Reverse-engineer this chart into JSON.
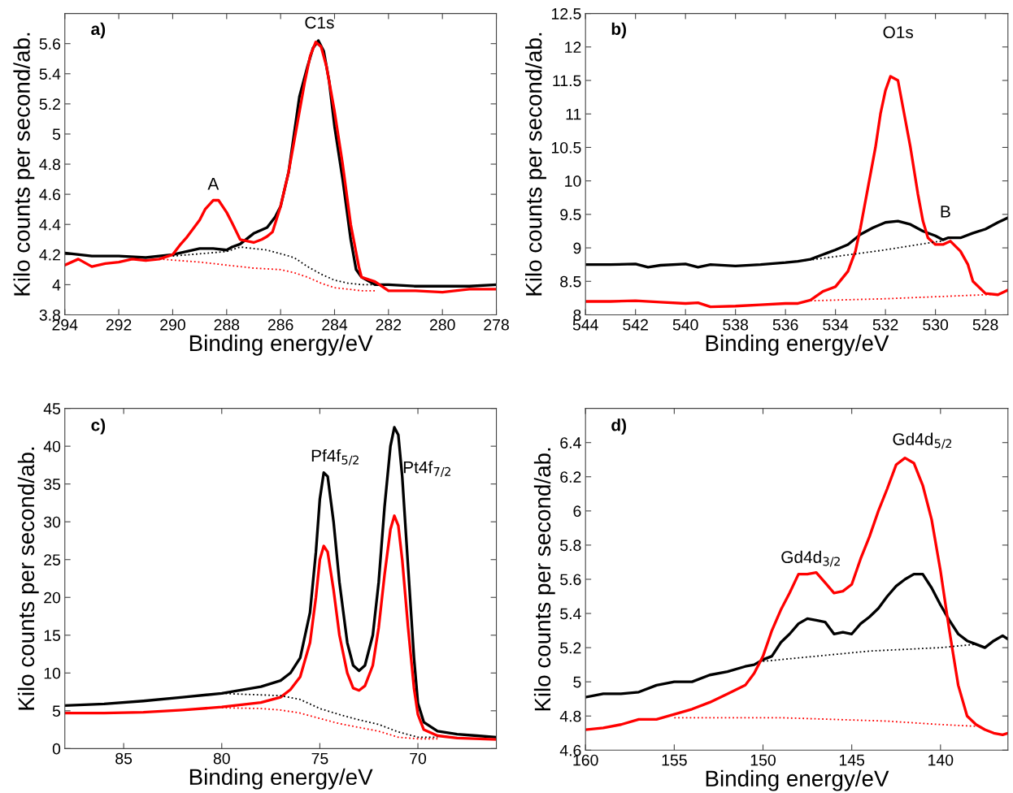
{
  "chart_data": [
    {
      "type": "line",
      "title": "a)",
      "xlabel": "Binding energy/eV",
      "ylabel": "Kilo counts per second/ab.",
      "xlim": [
        294,
        278
      ],
      "ylim": [
        3.8,
        5.8
      ],
      "xticks": [
        294,
        292,
        290,
        288,
        286,
        284,
        282,
        280,
        278
      ],
      "yticks": [
        3.8,
        4,
        4.2,
        4.4,
        4.6,
        4.8,
        5,
        5.2,
        5.4,
        5.6
      ],
      "annotations": [
        "C1s",
        "A"
      ],
      "series": [
        {
          "color": "#000000",
          "line_style": "solid",
          "x": [
            294,
            293,
            292,
            291,
            290.5,
            290,
            289.5,
            289,
            288.5,
            288,
            287.8,
            287.5,
            287,
            286.5,
            286.2,
            286,
            285.7,
            285.5,
            285.3,
            285,
            284.8,
            284.6,
            284.4,
            284.2,
            284,
            283.7,
            283.4,
            283.2,
            283,
            282.5,
            282,
            281,
            280,
            279,
            278
          ],
          "values": [
            4.21,
            4.19,
            4.19,
            4.18,
            4.19,
            4.2,
            4.22,
            4.24,
            4.24,
            4.23,
            4.25,
            4.27,
            4.34,
            4.38,
            4.45,
            4.52,
            4.75,
            5.0,
            5.25,
            5.45,
            5.57,
            5.62,
            5.55,
            5.35,
            5.05,
            4.7,
            4.3,
            4.1,
            4.05,
            4.0,
            4.0,
            3.99,
            3.99,
            3.99,
            4.0
          ]
        },
        {
          "color": "#ff0000",
          "line_style": "solid",
          "x": [
            294,
            293.5,
            293,
            292.5,
            292,
            291.5,
            291,
            290.5,
            290,
            289.7,
            289.5,
            289,
            288.8,
            288.5,
            288.3,
            288,
            287.8,
            287.5,
            287,
            286.7,
            286.5,
            286.3,
            286,
            285.7,
            285.4,
            285.1,
            284.9,
            284.7,
            284.5,
            284.3,
            284,
            283.7,
            283.4,
            283.1,
            283,
            282.5,
            282,
            281,
            280,
            279,
            278
          ],
          "values": [
            4.13,
            4.17,
            4.12,
            4.14,
            4.15,
            4.17,
            4.16,
            4.17,
            4.2,
            4.27,
            4.31,
            4.43,
            4.5,
            4.56,
            4.56,
            4.48,
            4.41,
            4.3,
            4.28,
            4.3,
            4.32,
            4.35,
            4.52,
            4.75,
            5.05,
            5.35,
            5.52,
            5.61,
            5.58,
            5.45,
            5.15,
            4.8,
            4.4,
            4.12,
            4.05,
            4.02,
            3.96,
            3.96,
            3.95,
            3.97,
            3.97
          ]
        },
        {
          "color": "#000000",
          "line_style": "dotted",
          "x": [
            290,
            288,
            287.5,
            286.5,
            285.5,
            285,
            284.5,
            284,
            283.5,
            283,
            282.5
          ],
          "values": [
            4.19,
            4.22,
            4.25,
            4.23,
            4.18,
            4.12,
            4.07,
            4.03,
            4.01,
            4.0,
            4.0
          ]
        },
        {
          "color": "#ff0000",
          "line_style": "dotted",
          "x": [
            290.5,
            289,
            288,
            287,
            286,
            285.5,
            285,
            284.5,
            284,
            283.5,
            283,
            282.5
          ],
          "values": [
            4.17,
            4.15,
            4.13,
            4.11,
            4.1,
            4.08,
            4.05,
            4.01,
            3.98,
            3.97,
            3.96,
            3.96
          ]
        }
      ]
    },
    {
      "type": "line",
      "title": "b)",
      "xlabel": "Binding energy/eV",
      "ylabel": "Kilo counts per second/ab.",
      "xlim": [
        544,
        527.1
      ],
      "ylim": [
        8,
        12.5
      ],
      "xticks": [
        544,
        542,
        540,
        538,
        536,
        534,
        532,
        530,
        528
      ],
      "yticks": [
        8,
        8.5,
        9,
        9.5,
        10,
        10.5,
        11,
        11.5,
        12,
        12.5
      ],
      "annotations": [
        "O1s",
        "B"
      ],
      "series": [
        {
          "color": "#000000",
          "line_style": "solid",
          "x": [
            544,
            543,
            542,
            541.5,
            541,
            540,
            539.5,
            539,
            538,
            537,
            536,
            535.5,
            535,
            534.5,
            534,
            533.5,
            533,
            532.5,
            532,
            531.5,
            531,
            530.5,
            530,
            529.7,
            529.5,
            529,
            528.5,
            528,
            527.5,
            527.1
          ],
          "values": [
            8.75,
            8.75,
            8.76,
            8.71,
            8.74,
            8.76,
            8.71,
            8.75,
            8.73,
            8.75,
            8.78,
            8.8,
            8.83,
            8.9,
            8.97,
            9.05,
            9.2,
            9.3,
            9.38,
            9.4,
            9.35,
            9.25,
            9.18,
            9.12,
            9.15,
            9.15,
            9.22,
            9.28,
            9.38,
            9.45
          ]
        },
        {
          "color": "#ff0000",
          "line_style": "solid",
          "x": [
            544,
            543,
            542,
            541,
            540,
            539.5,
            539,
            538,
            537,
            536,
            535.5,
            535,
            534.5,
            534,
            533.5,
            533.2,
            533,
            532.7,
            532.4,
            532.2,
            532,
            531.8,
            531.5,
            531.3,
            531,
            530.7,
            530.5,
            530.3,
            530,
            529.7,
            529.4,
            529,
            528.7,
            528.5,
            528,
            527.5,
            527.1
          ],
          "values": [
            8.2,
            8.2,
            8.21,
            8.19,
            8.17,
            8.18,
            8.12,
            8.13,
            8.15,
            8.17,
            8.17,
            8.22,
            8.35,
            8.42,
            8.65,
            8.95,
            9.3,
            9.9,
            10.5,
            11.0,
            11.35,
            11.56,
            11.5,
            11.1,
            10.5,
            9.8,
            9.4,
            9.15,
            9.05,
            9.05,
            9.1,
            8.95,
            8.75,
            8.5,
            8.32,
            8.3,
            8.37
          ]
        },
        {
          "color": "#000000",
          "line_style": "dotted",
          "x": [
            536,
            535,
            534,
            533,
            532,
            531,
            530,
            529.7
          ],
          "values": [
            8.78,
            8.82,
            8.87,
            8.92,
            8.97,
            9.03,
            9.09,
            9.1
          ]
        },
        {
          "color": "#ff0000",
          "line_style": "dotted",
          "x": [
            535,
            534,
            532,
            530,
            528,
            527.5
          ],
          "values": [
            8.21,
            8.22,
            8.24,
            8.27,
            8.3,
            8.31
          ]
        }
      ]
    },
    {
      "type": "line",
      "title": "c)",
      "xlabel": "Binding energy/eV",
      "ylabel": "Kilo counts per second/ab.",
      "xlim": [
        88,
        66
      ],
      "ylim": [
        0,
        45
      ],
      "xticks": [
        85,
        80,
        75,
        70
      ],
      "yticks": [
        0,
        5,
        10,
        15,
        20,
        25,
        30,
        35,
        40,
        45
      ],
      "annotations": [
        "Pf4f$_{5/2}$",
        "Pt4f$_{7/2}$"
      ],
      "series": [
        {
          "color": "#000000",
          "line_style": "solid",
          "x": [
            88,
            86,
            84,
            82,
            80,
            78,
            77,
            76.5,
            76,
            75.5,
            75.2,
            75,
            74.8,
            74.6,
            74.3,
            74,
            73.6,
            73.3,
            73,
            72.7,
            72.3,
            72,
            71.7,
            71.4,
            71.2,
            71,
            70.8,
            70.5,
            70.2,
            70,
            69.7,
            69,
            68,
            67,
            66
          ],
          "values": [
            5.7,
            5.9,
            6.3,
            6.8,
            7.3,
            8.2,
            9.0,
            10,
            12,
            18,
            26,
            33,
            36.5,
            36,
            30,
            22,
            14,
            11,
            10.3,
            11,
            15,
            22,
            32,
            40,
            42.5,
            41.5,
            36,
            24,
            12,
            6,
            3.5,
            2.3,
            1.9,
            1.7,
            1.5
          ]
        },
        {
          "color": "#ff0000",
          "line_style": "solid",
          "x": [
            88,
            86,
            84,
            82,
            80,
            78,
            77,
            76.5,
            76,
            75.5,
            75.2,
            75,
            74.8,
            74.6,
            74.3,
            74,
            73.6,
            73.3,
            73,
            72.7,
            72.3,
            72,
            71.7,
            71.4,
            71.2,
            71,
            70.8,
            70.5,
            70.2,
            70,
            69.7,
            69,
            68,
            66
          ],
          "values": [
            4.7,
            4.7,
            4.8,
            5.1,
            5.5,
            6.1,
            6.8,
            7.8,
            9.5,
            14,
            20,
            25,
            26.8,
            26,
            21,
            15,
            10,
            8,
            7.7,
            8.3,
            11,
            16,
            23,
            29,
            30.8,
            29.5,
            25,
            16,
            8,
            4.5,
            2.5,
            1.7,
            1.4,
            1.2
          ]
        },
        {
          "color": "#000000",
          "line_style": "dotted",
          "x": [
            80,
            79,
            77,
            76,
            75,
            74,
            73,
            72,
            71,
            70,
            69
          ],
          "values": [
            7.3,
            7.2,
            7.0,
            6.5,
            5.3,
            4.5,
            3.8,
            3.2,
            2.2,
            1.5,
            1.5
          ]
        },
        {
          "color": "#ff0000",
          "line_style": "dotted",
          "x": [
            80,
            78,
            77,
            76,
            75,
            74,
            73,
            72,
            71,
            70,
            69
          ],
          "values": [
            5.4,
            5.3,
            5.1,
            4.7,
            4.0,
            3.3,
            2.8,
            2.3,
            1.5,
            1.3,
            1.3
          ]
        }
      ]
    },
    {
      "type": "line",
      "title": "d)",
      "xlabel": "Binding energy/eV",
      "ylabel": "Kilo counts per second/ab.",
      "xlim": [
        160,
        136.2
      ],
      "ylim": [
        4.6,
        6.6
      ],
      "xticks": [
        160,
        155,
        150,
        145,
        140
      ],
      "yticks": [
        4.6,
        4.8,
        5,
        5.2,
        5.4,
        5.6,
        5.8,
        6,
        6.2,
        6.4
      ],
      "annotations": [
        "Gd4d$_{3/2}$",
        "Gd4d$_{5/2}$"
      ],
      "series": [
        {
          "color": "#000000",
          "line_style": "solid",
          "x": [
            160,
            159,
            158,
            157,
            156,
            155,
            154,
            153,
            152,
            151,
            150.5,
            150,
            149.5,
            149,
            148.5,
            148,
            147.5,
            147,
            146.5,
            146,
            145.5,
            145,
            144.5,
            144,
            143.5,
            143,
            142.5,
            142,
            141.5,
            141,
            140.5,
            140,
            139.5,
            139,
            138.5,
            138,
            137.5,
            137,
            136.5,
            136.2
          ],
          "values": [
            4.91,
            4.93,
            4.93,
            4.94,
            4.98,
            5.0,
            5.0,
            5.04,
            5.06,
            5.09,
            5.1,
            5.13,
            5.15,
            5.23,
            5.28,
            5.34,
            5.37,
            5.36,
            5.35,
            5.28,
            5.29,
            5.28,
            5.34,
            5.38,
            5.43,
            5.5,
            5.56,
            5.6,
            5.63,
            5.63,
            5.55,
            5.45,
            5.36,
            5.28,
            5.24,
            5.22,
            5.2,
            5.24,
            5.27,
            5.25
          ]
        },
        {
          "color": "#ff0000",
          "line_style": "solid",
          "x": [
            160,
            159,
            158,
            157,
            156,
            155,
            154,
            153,
            152,
            151,
            150.5,
            150,
            149.5,
            149,
            148.5,
            148,
            147.5,
            147,
            146.5,
            146,
            145.5,
            145,
            144.5,
            144,
            143.5,
            143,
            142.5,
            142,
            141.5,
            141,
            140.5,
            140,
            139.5,
            139,
            138.5,
            138,
            137.5,
            137,
            136.5,
            136.2
          ],
          "values": [
            4.72,
            4.73,
            4.75,
            4.78,
            4.78,
            4.81,
            4.84,
            4.88,
            4.93,
            4.98,
            5.05,
            5.15,
            5.3,
            5.42,
            5.52,
            5.63,
            5.63,
            5.64,
            5.58,
            5.52,
            5.53,
            5.57,
            5.72,
            5.85,
            6.0,
            6.13,
            6.27,
            6.31,
            6.28,
            6.15,
            5.95,
            5.65,
            5.3,
            4.98,
            4.8,
            4.75,
            4.72,
            4.7,
            4.69,
            4.7
          ]
        },
        {
          "color": "#000000",
          "line_style": "dotted",
          "x": [
            150,
            148,
            146,
            144,
            142,
            140,
            138
          ],
          "values": [
            5.12,
            5.14,
            5.16,
            5.18,
            5.19,
            5.2,
            5.22
          ]
        },
        {
          "color": "#ff0000",
          "line_style": "dotted",
          "x": [
            155,
            152,
            149,
            146,
            143,
            140,
            138
          ],
          "values": [
            4.79,
            4.79,
            4.79,
            4.78,
            4.77,
            4.75,
            4.74
          ]
        }
      ]
    }
  ]
}
